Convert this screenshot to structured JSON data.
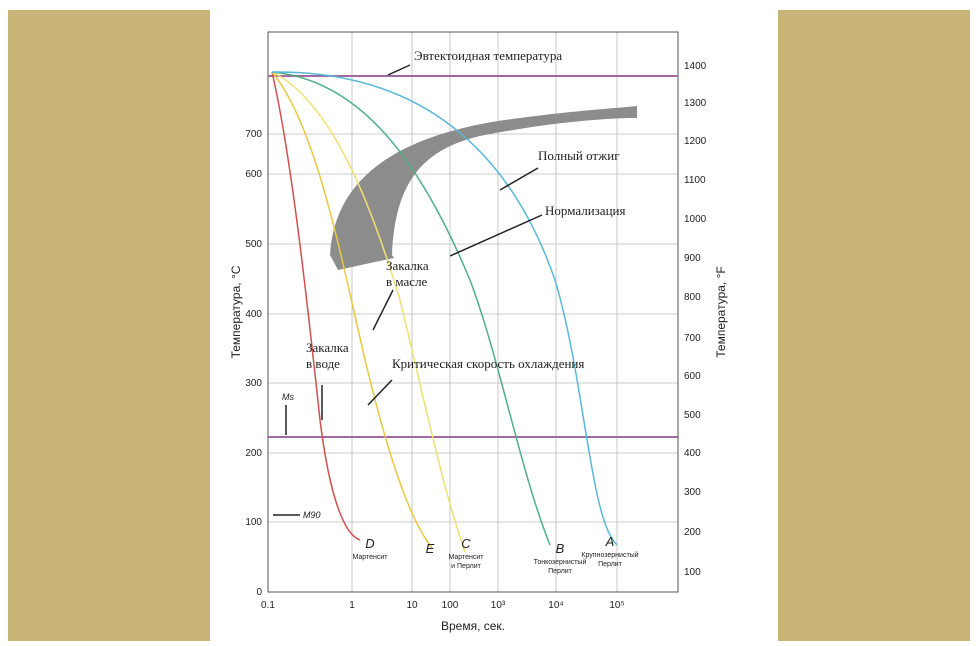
{
  "diagram": {
    "y_left_label": "Температура, °С",
    "y_right_label": "Температура, °F",
    "x_label": "Время, сек.",
    "y_left_ticks": [
      "0",
      "100",
      "200",
      "300",
      "400",
      "500",
      "600",
      "700"
    ],
    "y_right_ticks": [
      "100",
      "200",
      "300",
      "400",
      "500",
      "600",
      "700",
      "800",
      "900",
      "1000",
      "1100",
      "1200",
      "1300",
      "1400"
    ],
    "x_ticks": [
      "0.1",
      "1",
      "10",
      "100",
      "10³",
      "10⁴",
      "10⁵"
    ],
    "annotations": {
      "eutectoid": "Эвтектоидная температура",
      "full_anneal": "Полный отжиг",
      "normalizing": "Нормализация",
      "oil_quench_1": "Закалка",
      "oil_quench_2": "в масле",
      "water_quench_1": "Закалка",
      "water_quench_2": "в воде",
      "critical_rate": "Критическая скорость охлаждения",
      "ms": "Ms",
      "m90": "M90"
    },
    "curves": [
      {
        "letter": "D",
        "label": [
          "Мартенсит"
        ]
      },
      {
        "letter": "E",
        "label": []
      },
      {
        "letter": "C",
        "label": [
          "Мартенсит",
          "и Перлит"
        ]
      },
      {
        "letter": "B",
        "label": [
          "Тонкозернистый",
          "Перлит"
        ]
      },
      {
        "letter": "A",
        "label": [
          "Крупнозернистый",
          "Перлит"
        ]
      }
    ]
  }
}
